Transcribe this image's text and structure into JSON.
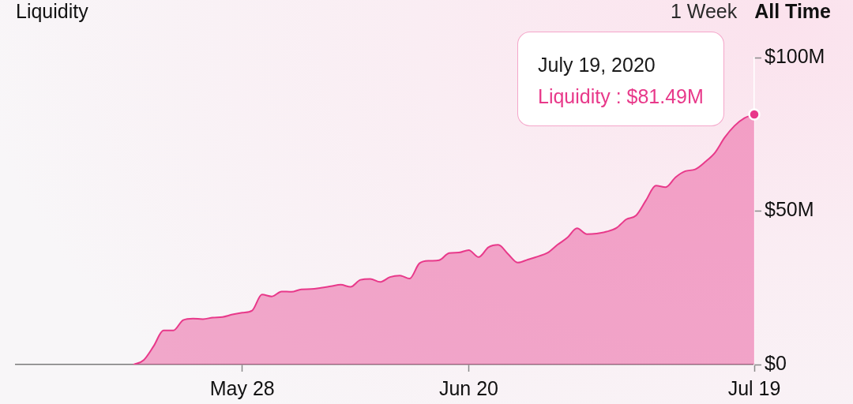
{
  "chart_data": {
    "type": "area",
    "title": "Liquidity",
    "x": [
      "2020-05-17",
      "2020-05-18",
      "2020-05-19",
      "2020-05-20",
      "2020-05-21",
      "2020-05-22",
      "2020-05-23",
      "2020-05-24",
      "2020-05-25",
      "2020-05-26",
      "2020-05-27",
      "2020-05-28",
      "2020-05-29",
      "2020-05-30",
      "2020-05-31",
      "2020-06-01",
      "2020-06-02",
      "2020-06-03",
      "2020-06-04",
      "2020-06-05",
      "2020-06-06",
      "2020-06-07",
      "2020-06-08",
      "2020-06-09",
      "2020-06-10",
      "2020-06-11",
      "2020-06-12",
      "2020-06-13",
      "2020-06-14",
      "2020-06-15",
      "2020-06-16",
      "2020-06-17",
      "2020-06-18",
      "2020-06-19",
      "2020-06-20",
      "2020-06-21",
      "2020-06-22",
      "2020-06-23",
      "2020-06-24",
      "2020-06-25",
      "2020-06-26",
      "2020-06-27",
      "2020-06-28",
      "2020-06-29",
      "2020-06-30",
      "2020-07-01",
      "2020-07-02",
      "2020-07-03",
      "2020-07-04",
      "2020-07-05",
      "2020-07-06",
      "2020-07-07",
      "2020-07-08",
      "2020-07-09",
      "2020-07-10",
      "2020-07-11",
      "2020-07-12",
      "2020-07-13",
      "2020-07-14",
      "2020-07-15",
      "2020-07-16",
      "2020-07-17",
      "2020-07-18",
      "2020-07-19"
    ],
    "values": [
      0,
      1.5,
      6,
      11.1,
      11.1,
      14.5,
      15,
      14.8,
      15.3,
      15.5,
      16.3,
      16.9,
      17.6,
      22.8,
      22.2,
      23.8,
      23.7,
      24.5,
      24.6,
      25,
      25.5,
      26,
      25.3,
      27.6,
      27.9,
      26.9,
      28.5,
      29,
      28,
      33,
      33.8,
      34,
      36.3,
      36.5,
      37.3,
      35,
      38.2,
      39,
      36,
      33.2,
      34.2,
      35.2,
      36.4,
      39,
      41.3,
      44.4,
      42.5,
      42.7,
      43.3,
      44.5,
      47.3,
      48.6,
      53.5,
      58.3,
      57.8,
      61,
      63,
      63.6,
      66,
      69,
      74,
      77.8,
      80.3,
      81.49
    ],
    "color": "#e8398a",
    "xlim": [
      "2020-05-05",
      "2020-07-19"
    ],
    "xticks": [
      {
        "value": "2020-05-28",
        "label": "May 28"
      },
      {
        "value": "2020-06-20",
        "label": "Jun 20"
      },
      {
        "value": "2020-07-19",
        "label": "Jul 19"
      }
    ],
    "ylim": [
      0,
      100
    ],
    "yticks": [
      {
        "value": 0,
        "label": "$0"
      },
      {
        "value": 50,
        "label": "$50M"
      },
      {
        "value": 100,
        "label": "$100M"
      }
    ],
    "annotations": [
      "1 Week",
      "All Time",
      "July 19, 2020",
      {
        "text": "Liquidity : $81.49M",
        "x": "2020-07-19",
        "y": 81.49
      }
    ]
  }
}
